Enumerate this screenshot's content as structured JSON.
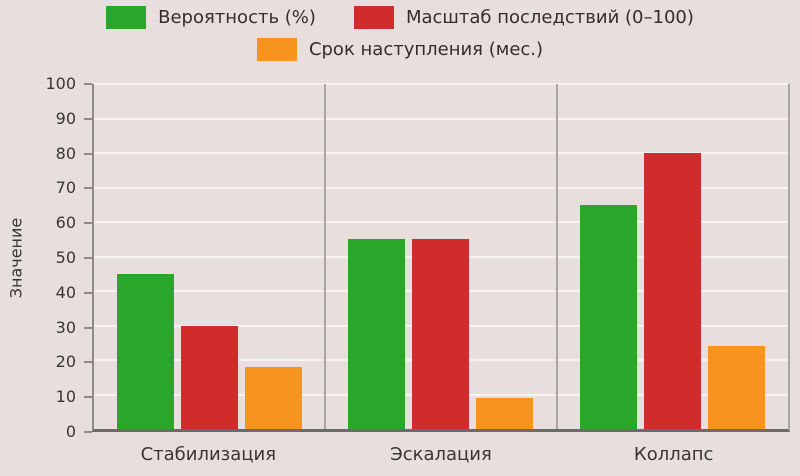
{
  "chart_data": {
    "type": "bar",
    "title": "",
    "categories": [
      "Стабилизация",
      "Эскалация",
      "Коллапс"
    ],
    "series": [
      {
        "name": "Вероятность (%)",
        "color": "#2aa62a",
        "values": [
          45,
          55,
          65
        ]
      },
      {
        "name": "Масштаб последствий (0–100)",
        "color": "#d02c2c",
        "values": [
          30,
          55,
          80
        ]
      },
      {
        "name": "Срок наступления (мес.)",
        "color": "#f7941e",
        "values": [
          18,
          9,
          24
        ]
      }
    ],
    "xlabel": "",
    "ylabel": "Значение",
    "ylim": [
      0,
      100
    ],
    "yticks": [
      0,
      10,
      20,
      30,
      40,
      50,
      60,
      70,
      80,
      90,
      100
    ],
    "grid": true,
    "legend_position": "top"
  },
  "colors": {
    "background": "#e9dede",
    "gridline": "#f7f3f3",
    "axis": "#6f6a6a",
    "separator": "#aaa4a4",
    "text": "#3a3434"
  }
}
